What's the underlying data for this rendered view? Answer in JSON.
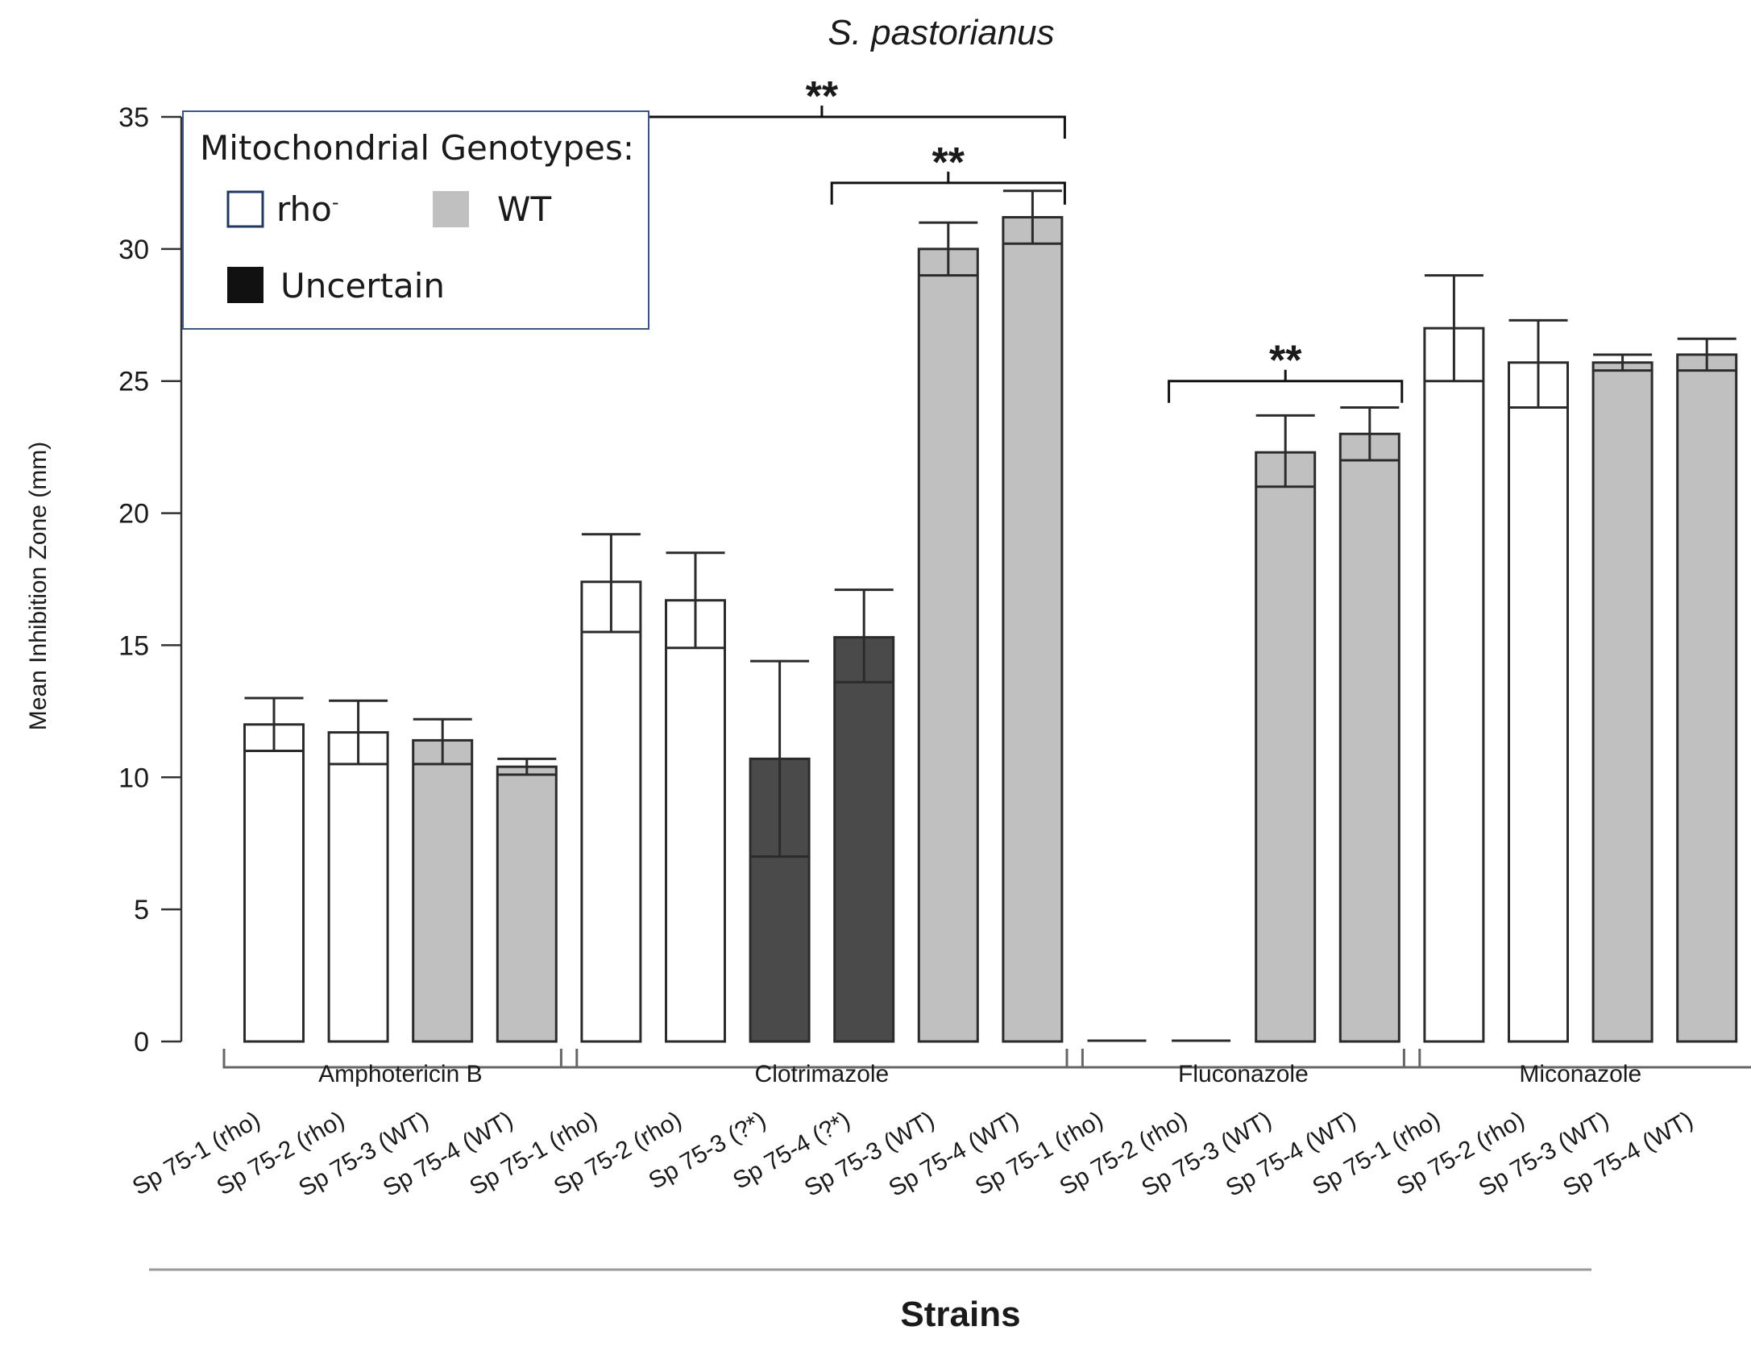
{
  "chart_data": {
    "type": "bar",
    "title": "S. pastorianus",
    "ylabel": "Mean Inhibition Zone (mm)",
    "xlabel": "Strains",
    "ylim": [
      0,
      35
    ],
    "yticks": [
      0,
      5,
      10,
      15,
      20,
      25,
      30,
      35
    ],
    "grid": false,
    "legend": {
      "title": "Mitochondrial Genotypes:",
      "position": "top-left",
      "entries": [
        {
          "key": "rho",
          "label": "rho",
          "sup": "-"
        },
        {
          "key": "WT",
          "label": "WT",
          "sup": ""
        },
        {
          "key": "uncertain",
          "label": "Uncertain",
          "sup": ""
        }
      ]
    },
    "colors": {
      "rho": "#ffffff",
      "WT": "#c0c0c0",
      "uncertain": "#4a4a4a",
      "stroke": "#2b2b2b",
      "legend_border": "#3a5587",
      "rho_legend_border": "#1f3864"
    },
    "groups": [
      {
        "name": "Amphotericin B",
        "bars": [
          {
            "label": "Sp 75-1 (rho)",
            "genotype": "rho",
            "value": 12.0,
            "err_low": 11.0,
            "err_high": 13.0
          },
          {
            "label": "Sp 75-2  (rho)",
            "genotype": "rho",
            "value": 11.7,
            "err_low": 10.5,
            "err_high": 12.9
          },
          {
            "label": "Sp 75-3 (WT)",
            "genotype": "WT",
            "value": 11.4,
            "err_low": 10.5,
            "err_high": 12.2
          },
          {
            "label": "Sp 75-4 (WT)",
            "genotype": "WT",
            "value": 10.4,
            "err_low": 10.1,
            "err_high": 10.7
          }
        ]
      },
      {
        "name": "Clotrimazole",
        "bars": [
          {
            "label": "Sp 75-1 (rho)",
            "genotype": "rho",
            "value": 17.4,
            "err_low": 15.5,
            "err_high": 19.2
          },
          {
            "label": "Sp 75-2  (rho)",
            "genotype": "rho",
            "value": 16.7,
            "err_low": 14.9,
            "err_high": 18.5
          },
          {
            "label": "Sp 75-3 (?*)",
            "genotype": "uncertain",
            "value": 10.7,
            "err_low": 7.0,
            "err_high": 14.4
          },
          {
            "label": "Sp 75-4 (?*)",
            "genotype": "uncertain",
            "value": 15.3,
            "err_low": 13.6,
            "err_high": 17.1
          },
          {
            "label": "Sp 75-3 (WT)",
            "genotype": "WT",
            "value": 30.0,
            "err_low": 29.0,
            "err_high": 31.0
          },
          {
            "label": "Sp 75-4 (WT)",
            "genotype": "WT",
            "value": 31.2,
            "err_low": 30.2,
            "err_high": 32.2
          }
        ]
      },
      {
        "name": "Fluconazole",
        "bars": [
          {
            "label": "Sp 75-1 (rho)",
            "genotype": "rho",
            "value": 0,
            "err_low": 0,
            "err_high": 0
          },
          {
            "label": "Sp 75-2  (rho)",
            "genotype": "rho",
            "value": 0,
            "err_low": 0,
            "err_high": 0
          },
          {
            "label": "Sp 75-3 (WT)",
            "genotype": "WT",
            "value": 22.3,
            "err_low": 21.0,
            "err_high": 23.7
          },
          {
            "label": "Sp 75-4 (WT)",
            "genotype": "WT",
            "value": 23.0,
            "err_low": 22.0,
            "err_high": 24.0
          }
        ]
      },
      {
        "name": "Miconazole",
        "bars": [
          {
            "label": "Sp 75-1 (rho)",
            "genotype": "rho",
            "value": 27.0,
            "err_low": 25.0,
            "err_high": 29.0
          },
          {
            "label": "Sp 75-2  (rho)",
            "genotype": "rho",
            "value": 25.7,
            "err_low": 24.0,
            "err_high": 27.3
          },
          {
            "label": "Sp 75-3 (WT)",
            "genotype": "WT",
            "value": 25.7,
            "err_low": 25.4,
            "err_high": 26.0
          },
          {
            "label": "Sp 75-4 (WT)",
            "genotype": "WT",
            "value": 26.0,
            "err_low": 25.4,
            "err_high": 26.6
          }
        ]
      }
    ],
    "significance": [
      {
        "label": "**",
        "from_bar": 4,
        "to_bar": 9,
        "level": 35.0
      },
      {
        "label": "**",
        "from_bar": 7,
        "to_bar": 9,
        "level": 32.5
      },
      {
        "label": "**",
        "from_bar": 11,
        "to_bar": 13,
        "level": 25.0
      }
    ]
  }
}
